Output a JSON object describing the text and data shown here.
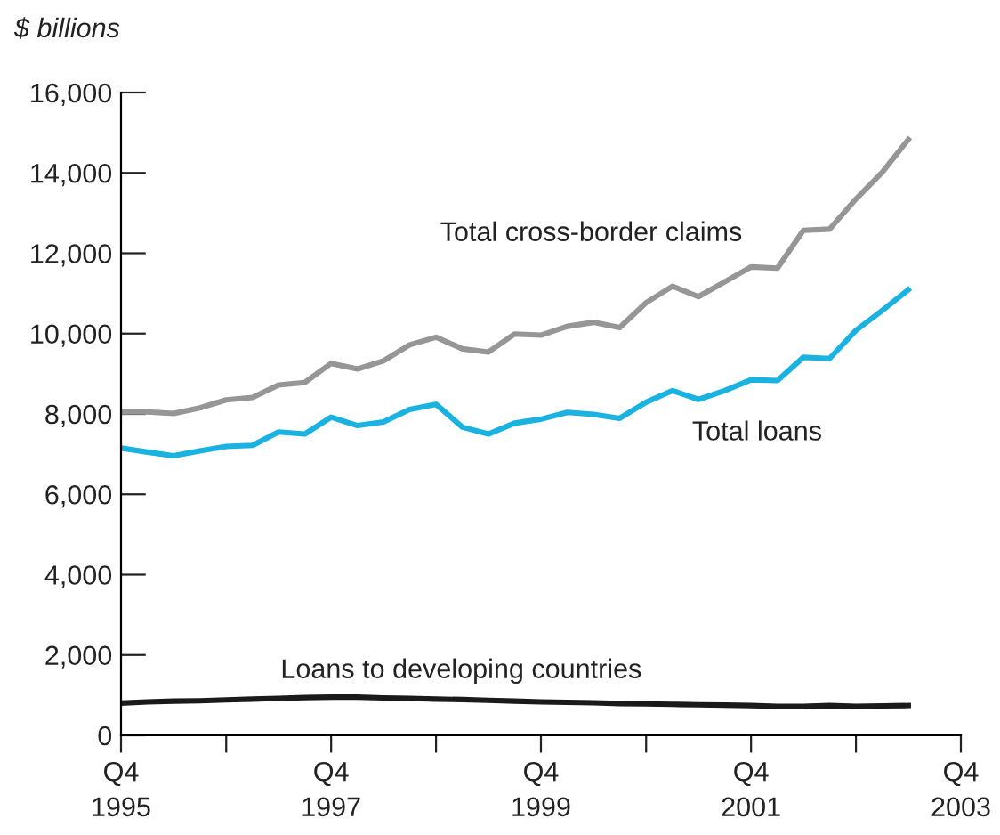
{
  "chart_data": {
    "type": "line",
    "ylabel": "$ billions",
    "x": [
      "1995-10",
      "1996-01",
      "1996-04",
      "1996-07",
      "1996-10",
      "1997-01",
      "1997-04",
      "1997-07",
      "1997-10",
      "1998-01",
      "1998-04",
      "1998-07",
      "1998-10",
      "1999-01",
      "1999-04",
      "1999-07",
      "1999-10",
      "2000-01",
      "2000-04",
      "2000-07",
      "2000-10",
      "2001-01",
      "2001-04",
      "2001-07",
      "2001-10",
      "2002-01",
      "2002-04",
      "2002-07",
      "2002-10",
      "2003-01",
      "2003-04"
    ],
    "series": [
      {
        "name": "Total cross-border claims",
        "color": "#969696",
        "values": [
          8050,
          8050,
          8010,
          8150,
          8350,
          8410,
          8720,
          8780,
          9260,
          9120,
          9320,
          9720,
          9910,
          9620,
          9540,
          9990,
          9960,
          10180,
          10280,
          10150,
          10770,
          11180,
          10920,
          11290,
          11660,
          11630,
          12570,
          12600,
          13350,
          14020,
          14830
        ]
      },
      {
        "name": "Total loans",
        "color": "#1ab2e0",
        "values": [
          7150,
          7050,
          6960,
          7080,
          7190,
          7220,
          7550,
          7500,
          7920,
          7710,
          7800,
          8110,
          8240,
          7670,
          7500,
          7770,
          7870,
          8040,
          7990,
          7890,
          8290,
          8580,
          8360,
          8580,
          8850,
          8830,
          9410,
          9380,
          10080,
          10580,
          11090
        ]
      },
      {
        "name": "Loans to developing countries",
        "color": "#1a1a1a",
        "values": [
          800,
          830,
          850,
          860,
          880,
          900,
          920,
          940,
          950,
          950,
          930,
          920,
          900,
          890,
          870,
          850,
          830,
          820,
          810,
          790,
          780,
          770,
          760,
          750,
          740,
          720,
          720,
          740,
          720,
          730,
          740
        ]
      }
    ],
    "xlim": [
      "1995-10",
      "2003-10"
    ],
    "xticks": [
      {
        "value": "1995-10",
        "label": "Q4\n1995"
      },
      {
        "value": "1996-10",
        "label": null
      },
      {
        "value": "1997-10",
        "label": "Q4\n1997"
      },
      {
        "value": "1998-10",
        "label": null
      },
      {
        "value": "1999-10",
        "label": "Q4\n1999"
      },
      {
        "value": "2000-10",
        "label": null
      },
      {
        "value": "2001-10",
        "label": "Q4\n2001"
      },
      {
        "value": "2002-10",
        "label": null
      },
      {
        "value": "2003-10",
        "label": "Q4\n2003"
      }
    ],
    "ylim": [
      0,
      16000
    ],
    "yticks": [
      0,
      {
        "value": 2000,
        "label": "2,000"
      },
      {
        "value": 4000,
        "label": "4,000"
      },
      {
        "value": 6000,
        "label": "6,000"
      },
      {
        "value": 8000,
        "label": "8,000"
      },
      {
        "value": 10000,
        "label": "10,000"
      },
      {
        "value": 12000,
        "label": "12,000"
      },
      {
        "value": 14000,
        "label": "14,000"
      },
      {
        "value": 16000,
        "label": "16,000"
      }
    ],
    "grid": false,
    "legend": false,
    "marker": "none",
    "line_style": "solid"
  }
}
